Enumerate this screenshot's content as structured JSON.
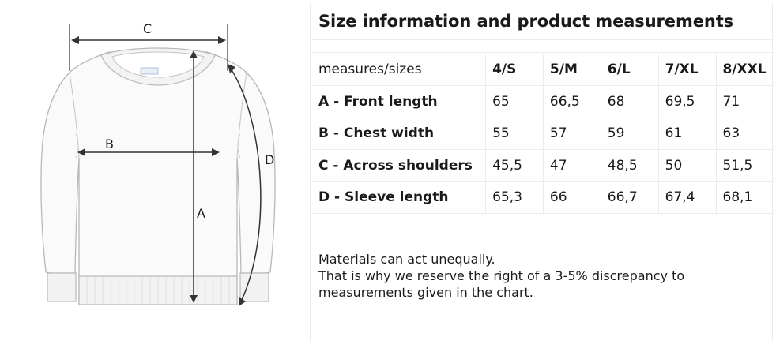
{
  "title": "Size information and product measurements",
  "diagram": {
    "labels": {
      "a": "A",
      "b": "B",
      "c": "C",
      "d": "D"
    }
  },
  "table": {
    "header_label": "measures/sizes",
    "sizes": [
      "4/S",
      "5/M",
      "6/L",
      "7/XL",
      "8/XXL"
    ],
    "rows": [
      {
        "label": "A - Front length",
        "values": [
          "65",
          "66,5",
          "68",
          "69,5",
          "71"
        ]
      },
      {
        "label": "B - Chest width",
        "values": [
          "55",
          "57",
          "59",
          "61",
          "63"
        ]
      },
      {
        "label": "C - Across shoulders",
        "values": [
          "45,5",
          "47",
          "48,5",
          "50",
          "51,5"
        ]
      },
      {
        "label": "D - Sleeve length",
        "values": [
          "65,3",
          "66",
          "66,7",
          "67,4",
          "68,1"
        ]
      }
    ]
  },
  "notes": [
    "Materials can act unequally.",
    "That is why we reserve the right of a 3-5% discrepancy to",
    "measurements given in the chart."
  ]
}
